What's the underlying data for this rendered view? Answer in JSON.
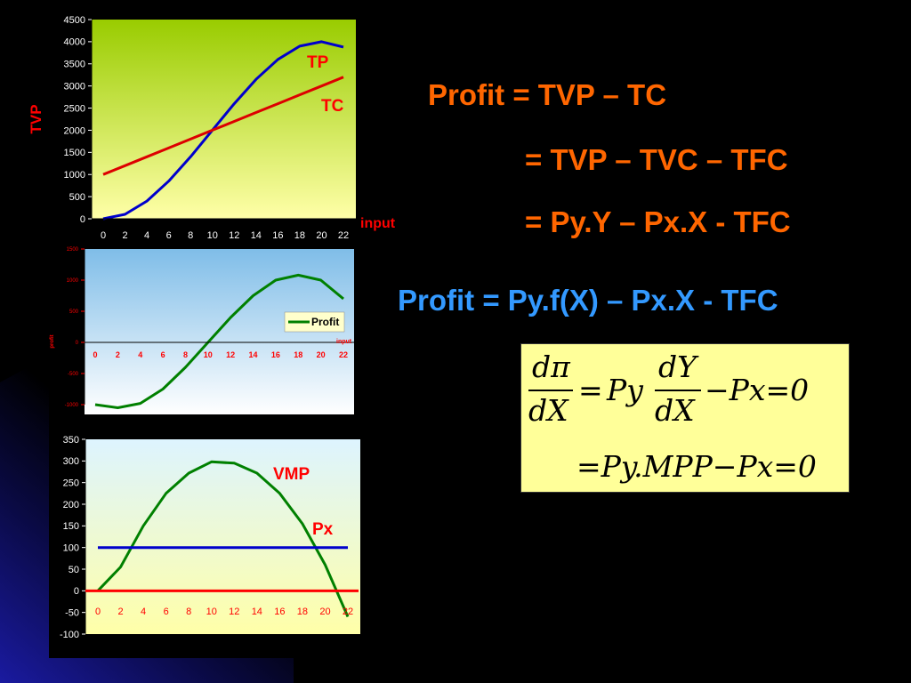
{
  "colors": {
    "background": "#000000",
    "orange_text": "#ff6600",
    "blue_text": "#3399ff",
    "series_blue": "#0000cc",
    "series_red": "#dd0000",
    "series_green": "#008000",
    "formula_bg": "#ffff99"
  },
  "equations": {
    "line1": "Profit = TVP – TC",
    "line2": "= TVP – TVC – TFC",
    "line3": "= Py.Y – Px.X - TFC",
    "line4": "Profit = Py.f(X) – Px.X - TFC"
  },
  "formula": {
    "num1": "dπ",
    "den1": "dX",
    "eq1": "=",
    "py": "Py",
    "num2": "dY",
    "den2": "dX",
    "minus_px_zero": "−Px=0",
    "line2": "=Py.MPP−Px=0"
  },
  "chart_data": [
    {
      "type": "line",
      "x": [
        0,
        2,
        4,
        6,
        8,
        10,
        12,
        14,
        16,
        18,
        20,
        22
      ],
      "series": [
        {
          "name": "TP",
          "values": [
            0,
            100,
            400,
            850,
            1400,
            2000,
            2600,
            3150,
            3600,
            3900,
            4000,
            3880
          ]
        },
        {
          "name": "TC",
          "values": [
            1000,
            1200,
            1400,
            1600,
            1800,
            2000,
            2200,
            2400,
            2600,
            2800,
            3000,
            3200
          ]
        }
      ],
      "ylabel": "TVP",
      "xlabel": "input",
      "ylim": [
        0,
        4500
      ],
      "yticks": [
        "0",
        "500",
        "1000",
        "1500",
        "2000",
        "2500",
        "3000",
        "3500",
        "4000",
        "4500"
      ],
      "xticks": [
        "0",
        "2",
        "4",
        "6",
        "8",
        "10",
        "12",
        "14",
        "16",
        "18",
        "20",
        "22"
      ]
    },
    {
      "type": "line",
      "x": [
        0,
        2,
        4,
        6,
        8,
        10,
        12,
        14,
        16,
        18,
        20,
        22
      ],
      "series": [
        {
          "name": "Profit",
          "values": [
            -1000,
            -1050,
            -980,
            -750,
            -400,
            0,
            400,
            750,
            1000,
            1080,
            1000,
            700
          ]
        }
      ],
      "ylabel": "profit",
      "xlabel": "input",
      "ylim": [
        -1000,
        1500
      ],
      "yticks": [
        "-1000",
        "-500",
        "0",
        "500",
        "1000",
        "1500"
      ],
      "xticks": [
        "0",
        "2",
        "4",
        "6",
        "8",
        "10",
        "12",
        "14",
        "16",
        "18",
        "20",
        "22"
      ],
      "legend": "right"
    },
    {
      "type": "line",
      "x": [
        0,
        2,
        4,
        6,
        8,
        10,
        12,
        14,
        16,
        18,
        20,
        22
      ],
      "series": [
        {
          "name": "VMP",
          "values": [
            0,
            55,
            150,
            225,
            272,
            298,
            295,
            272,
            225,
            155,
            60,
            -60
          ]
        },
        {
          "name": "Px",
          "values": [
            100,
            100,
            100,
            100,
            100,
            100,
            100,
            100,
            100,
            100,
            100,
            100
          ]
        }
      ],
      "ylim": [
        -100,
        350
      ],
      "yticks": [
        "-100",
        "-50",
        "0",
        "50",
        "100",
        "150",
        "200",
        "250",
        "300",
        "350"
      ],
      "xticks": [
        "0",
        "2",
        "4",
        "6",
        "8",
        "10",
        "12",
        "14",
        "16",
        "18",
        "20",
        "22"
      ]
    }
  ]
}
